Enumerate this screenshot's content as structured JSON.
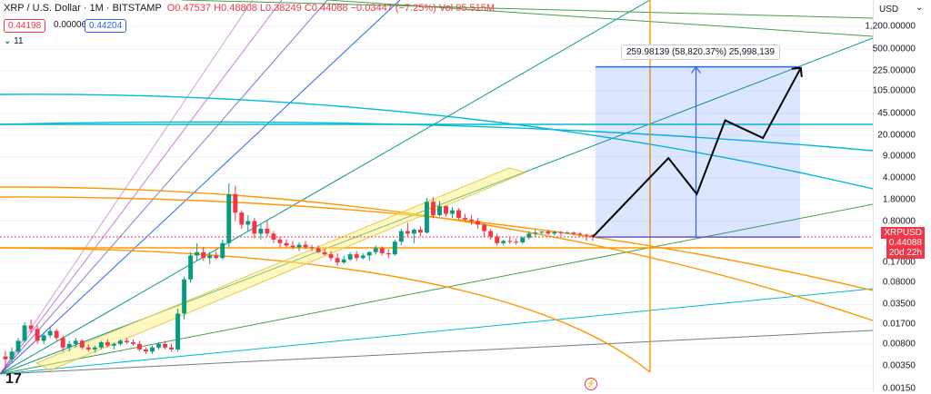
{
  "header": {
    "symbol": "XRP / U.S. Dollar · 1M · BITSTAMP",
    "o": "O0.47537",
    "h": "H0.48808",
    "l": "L0.38249",
    "c": "C0.44088",
    "chg": "−0.03447 (−7.25%)",
    "vol": "Vol 95.515M"
  },
  "price_pills": {
    "sell": "0.44198",
    "spread": "0.00006",
    "buy": "0.44204"
  },
  "indicator_count": "11",
  "measure_label": "259.98139 (58,820.37%) 25,998,139",
  "axis": {
    "currency": "USD",
    "ticks": [
      "1,200.00000",
      "500.00000",
      "225.00000",
      "105.00000",
      "45.00000",
      "20.00000",
      "9.00000",
      "4.00000",
      "1.80000",
      "0.80000",
      "0.17000",
      "0.08000",
      "0.03500",
      "0.01700",
      "0.00800",
      "0.00350",
      "0.00150"
    ],
    "symbol_label": "XRPUSD",
    "price_label": "0.44088",
    "countdown": "20d 22h"
  },
  "colors": {
    "up": "#089981",
    "down": "#f23645",
    "measure": "#2962ff",
    "fib_orange": "#ff9800"
  },
  "chart_data": {
    "type": "candlestick",
    "title": "XRP / U.S. Dollar · 1M · BITSTAMP",
    "yscale": "log",
    "ylim": [
      0.0015,
      2600
    ],
    "ohlc": [
      [
        0.005,
        0.0062,
        0.003,
        0.0045
      ],
      [
        0.0045,
        0.007,
        0.004,
        0.006
      ],
      [
        0.006,
        0.01,
        0.0055,
        0.009
      ],
      [
        0.009,
        0.018,
        0.0085,
        0.016
      ],
      [
        0.016,
        0.02,
        0.012,
        0.014
      ],
      [
        0.014,
        0.016,
        0.008,
        0.009
      ],
      [
        0.009,
        0.012,
        0.008,
        0.011
      ],
      [
        0.011,
        0.015,
        0.01,
        0.013
      ],
      [
        0.013,
        0.014,
        0.009,
        0.01
      ],
      [
        0.01,
        0.011,
        0.006,
        0.007
      ],
      [
        0.007,
        0.009,
        0.006,
        0.008
      ],
      [
        0.008,
        0.01,
        0.007,
        0.009
      ],
      [
        0.009,
        0.0095,
        0.0065,
        0.007
      ],
      [
        0.007,
        0.008,
        0.006,
        0.0065
      ],
      [
        0.0065,
        0.0075,
        0.0058,
        0.007
      ],
      [
        0.007,
        0.009,
        0.0065,
        0.0085
      ],
      [
        0.0085,
        0.0095,
        0.007,
        0.0075
      ],
      [
        0.0075,
        0.0085,
        0.0065,
        0.008
      ],
      [
        0.008,
        0.0095,
        0.0075,
        0.009
      ],
      [
        0.009,
        0.01,
        0.008,
        0.0085
      ],
      [
        0.0085,
        0.0095,
        0.0075,
        0.008
      ],
      [
        0.008,
        0.009,
        0.006,
        0.0065
      ],
      [
        0.0065,
        0.007,
        0.0055,
        0.006
      ],
      [
        0.006,
        0.0075,
        0.0055,
        0.007
      ],
      [
        0.007,
        0.0085,
        0.0065,
        0.008
      ],
      [
        0.008,
        0.009,
        0.0065,
        0.007
      ],
      [
        0.007,
        0.008,
        0.006,
        0.0065
      ],
      [
        0.0065,
        0.03,
        0.006,
        0.025
      ],
      [
        0.025,
        0.1,
        0.02,
        0.09
      ],
      [
        0.09,
        0.25,
        0.08,
        0.22
      ],
      [
        0.22,
        0.35,
        0.18,
        0.25
      ],
      [
        0.25,
        0.3,
        0.18,
        0.2
      ],
      [
        0.2,
        0.25,
        0.16,
        0.22
      ],
      [
        0.22,
        0.26,
        0.19,
        0.2
      ],
      [
        0.2,
        0.4,
        0.19,
        0.35
      ],
      [
        0.35,
        3.3,
        0.3,
        2.2
      ],
      [
        2.2,
        3.0,
        0.8,
        1.1
      ],
      [
        1.1,
        1.2,
        0.6,
        0.7
      ],
      [
        0.7,
        1.0,
        0.55,
        0.8
      ],
      [
        0.8,
        0.9,
        0.42,
        0.5
      ],
      [
        0.5,
        0.7,
        0.4,
        0.6
      ],
      [
        0.6,
        0.8,
        0.45,
        0.5
      ],
      [
        0.5,
        0.55,
        0.35,
        0.4
      ],
      [
        0.4,
        0.45,
        0.3,
        0.35
      ],
      [
        0.35,
        0.4,
        0.3,
        0.32
      ],
      [
        0.32,
        0.38,
        0.28,
        0.3
      ],
      [
        0.3,
        0.36,
        0.26,
        0.33
      ],
      [
        0.33,
        0.38,
        0.28,
        0.3
      ],
      [
        0.3,
        0.33,
        0.26,
        0.29
      ],
      [
        0.29,
        0.32,
        0.24,
        0.25
      ],
      [
        0.25,
        0.28,
        0.22,
        0.23
      ],
      [
        0.23,
        0.26,
        0.18,
        0.2
      ],
      [
        0.2,
        0.24,
        0.15,
        0.17
      ],
      [
        0.17,
        0.22,
        0.16,
        0.19
      ],
      [
        0.19,
        0.25,
        0.18,
        0.23
      ],
      [
        0.23,
        0.26,
        0.18,
        0.2
      ],
      [
        0.2,
        0.24,
        0.19,
        0.22
      ],
      [
        0.22,
        0.26,
        0.18,
        0.25
      ],
      [
        0.25,
        0.32,
        0.23,
        0.29
      ],
      [
        0.29,
        0.31,
        0.22,
        0.24
      ],
      [
        0.24,
        0.28,
        0.2,
        0.23
      ],
      [
        0.23,
        0.4,
        0.22,
        0.37
      ],
      [
        0.37,
        0.6,
        0.32,
        0.55
      ],
      [
        0.55,
        0.75,
        0.45,
        0.5
      ],
      [
        0.5,
        0.6,
        0.35,
        0.58
      ],
      [
        0.58,
        0.65,
        0.45,
        0.52
      ],
      [
        0.52,
        1.9,
        0.5,
        1.65
      ],
      [
        1.65,
        1.96,
        0.9,
        1.0
      ],
      [
        1.0,
        1.7,
        0.95,
        1.4
      ],
      [
        1.4,
        1.45,
        0.95,
        1.05
      ],
      [
        1.05,
        1.35,
        0.9,
        1.2
      ],
      [
        1.2,
        1.3,
        0.85,
        0.9
      ],
      [
        0.9,
        1.05,
        0.8,
        0.85
      ],
      [
        0.85,
        1.0,
        0.7,
        0.8
      ],
      [
        0.8,
        0.9,
        0.6,
        0.7
      ],
      [
        0.7,
        0.75,
        0.45,
        0.55
      ],
      [
        0.55,
        0.6,
        0.4,
        0.45
      ],
      [
        0.45,
        0.5,
        0.32,
        0.35
      ],
      [
        0.35,
        0.4,
        0.32,
        0.38
      ],
      [
        0.38,
        0.45,
        0.34,
        0.37
      ],
      [
        0.37,
        0.42,
        0.33,
        0.36
      ],
      [
        0.36,
        0.45,
        0.34,
        0.43
      ],
      [
        0.43,
        0.55,
        0.4,
        0.5
      ],
      [
        0.5,
        0.58,
        0.45,
        0.52
      ],
      [
        0.52,
        0.55,
        0.48,
        0.54
      ],
      [
        0.54,
        0.58,
        0.48,
        0.5
      ],
      [
        0.5,
        0.56,
        0.47,
        0.53
      ],
      [
        0.53,
        0.55,
        0.46,
        0.51
      ],
      [
        0.51,
        0.55,
        0.49,
        0.52
      ],
      [
        0.52,
        0.54,
        0.47,
        0.5
      ],
      [
        0.5,
        0.53,
        0.44,
        0.48
      ],
      [
        0.48,
        0.5,
        0.38,
        0.475
      ],
      [
        0.4754,
        0.4881,
        0.3825,
        0.4409
      ]
    ],
    "projection": [
      [
        0.4409,
        0
      ],
      [
        8.5,
        8
      ],
      [
        2.2,
        11
      ],
      [
        35,
        14
      ],
      [
        18,
        18
      ],
      [
        250,
        22
      ]
    ],
    "measure": {
      "low": 0.44,
      "high": 260,
      "label": "259.98139 (58,820.37%) 25,998,139"
    },
    "current_price": 0.44088
  }
}
